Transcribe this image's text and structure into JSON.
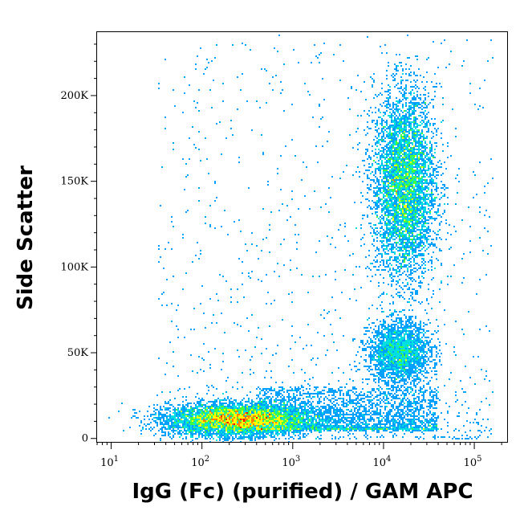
{
  "chart_data": {
    "type": "scatter",
    "plot_style": "density-colored flow cytometry dot plot",
    "xlabel": "IgG (Fc) (purified) / GAM APC",
    "ylabel": "Side Scatter",
    "x_scale": "log",
    "xlim": [
      7,
      230000
    ],
    "ylim": [
      -2000,
      237000
    ],
    "x_ticks": [
      {
        "value": 10,
        "base": "10",
        "exp": "1"
      },
      {
        "value": 100,
        "base": "10",
        "exp": "2"
      },
      {
        "value": 1000,
        "base": "10",
        "exp": "3"
      },
      {
        "value": 10000,
        "base": "10",
        "exp": "4"
      },
      {
        "value": 100000,
        "base": "10",
        "exp": "5"
      }
    ],
    "y_ticks": [
      {
        "value": 0,
        "label": "0"
      },
      {
        "value": 50000,
        "label": "50K"
      },
      {
        "value": 100000,
        "label": "100K"
      },
      {
        "value": 150000,
        "label": "150K"
      },
      {
        "value": 200000,
        "label": "200K"
      }
    ],
    "density_colors": [
      "#0000ff",
      "#00a0ff",
      "#00e0e0",
      "#40ff40",
      "#ffff00",
      "#ff8000",
      "#ff0000"
    ],
    "populations": [
      {
        "name": "negative",
        "x_center": 250,
        "x_log_spread": 0.38,
        "y_center": 11000,
        "y_spread": 4500,
        "count": 9000
      },
      {
        "name": "positive-high-ssc",
        "x_center": 17000,
        "x_log_spread": 0.17,
        "y_center": 148000,
        "y_spread": 27000,
        "count": 9000
      },
      {
        "name": "positive-low-ssc",
        "x_center": 15000,
        "x_log_spread": 0.17,
        "y_center": 50000,
        "y_spread": 9000,
        "count": 2600
      },
      {
        "name": "bridge",
        "x_log_range": [
          2.6,
          4.6
        ],
        "y_range": [
          5000,
          30000
        ],
        "count": 2800
      },
      {
        "name": "sparse-scatter",
        "x_log_range": [
          1.5,
          5.2
        ],
        "y_range": [
          0,
          235000
        ],
        "count": 1100
      }
    ],
    "grid": false,
    "legend": "none"
  }
}
